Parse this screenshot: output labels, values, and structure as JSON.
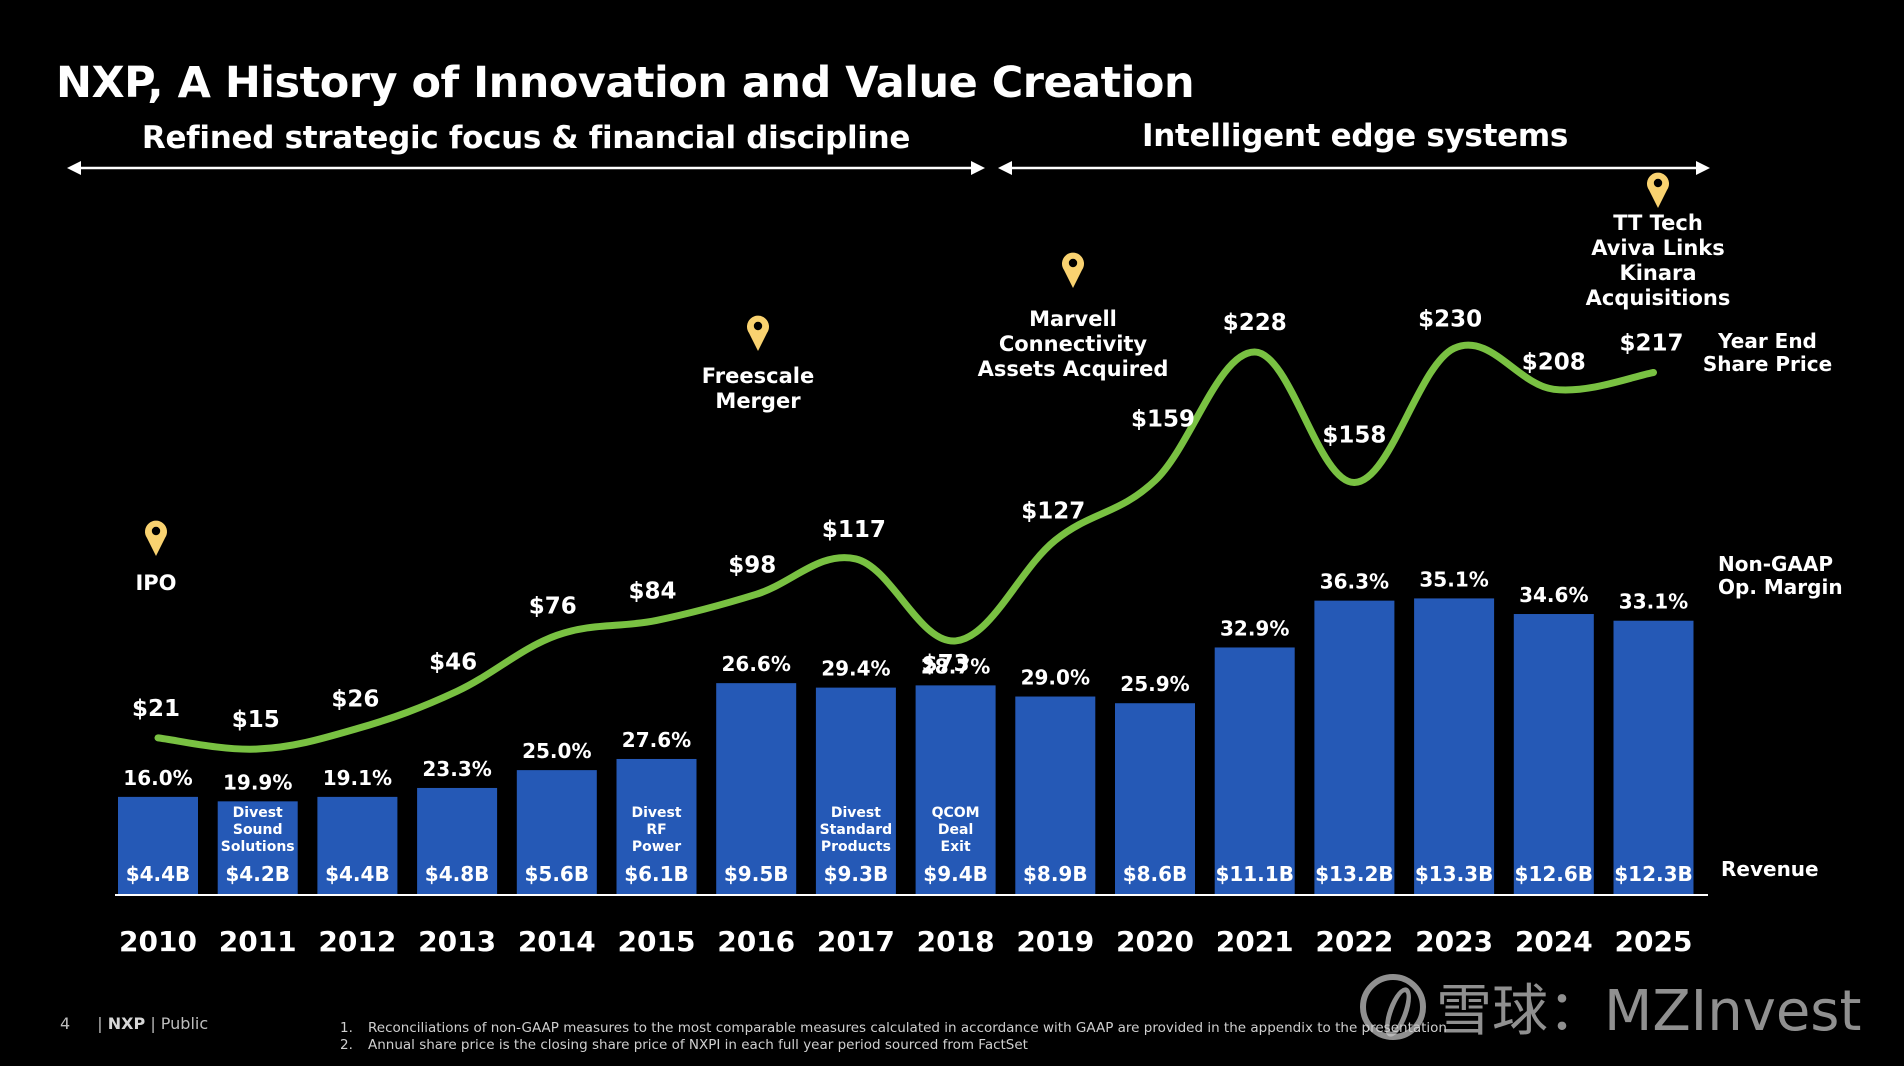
{
  "header": {
    "title": "NXP, A History of Innovation and Value Creation",
    "era_left": "Refined strategic focus & financial discipline",
    "era_right": "Intelligent edge systems"
  },
  "side_labels": {
    "share_price": "Year End\nShare Price",
    "margin": "Non-GAAP\nOp. Margin",
    "revenue": "Revenue"
  },
  "colors": {
    "bar": "#2559b6",
    "line": "#79c142",
    "pin": "#f9d270",
    "background": "#000000",
    "text": "#ffffff"
  },
  "footer": {
    "page_number": "4",
    "brand": "NXP",
    "classification": "Public",
    "notes": [
      {
        "num": "1.",
        "text": "Reconciliations of non-GAAP measures to the most comparable measures calculated in accordance with GAAP are provided in the appendix to the presentation"
      },
      {
        "num": "2.",
        "text": "Annual share price is the closing share price of NXPI in each full year period sourced from FactSet"
      }
    ]
  },
  "watermark": {
    "text": "雪球：MZInvest"
  },
  "chart_data": {
    "type": "bar",
    "title": "NXP, A History of Innovation and Value Creation",
    "xlabel": "",
    "ylabel": "",
    "categories": [
      "2010",
      "2011",
      "2012",
      "2013",
      "2014",
      "2015",
      "2016",
      "2017",
      "2018",
      "2019",
      "2020",
      "2021",
      "2022",
      "2023",
      "2024",
      "2025"
    ],
    "series": [
      {
        "name": "Revenue",
        "type": "bar",
        "unit": "$B",
        "values": [
          4.4,
          4.2,
          4.4,
          4.8,
          5.6,
          6.1,
          9.5,
          9.3,
          9.4,
          8.9,
          8.6,
          11.1,
          13.2,
          13.3,
          12.6,
          12.3
        ],
        "labels": [
          "$4.4B",
          "$4.2B",
          "$4.4B",
          "$4.8B",
          "$5.6B",
          "$6.1B",
          "$9.5B",
          "$9.3B",
          "$9.4B",
          "$8.9B",
          "$8.6B",
          "$11.1B",
          "$13.2B",
          "$13.3B",
          "$12.6B",
          "$12.3B"
        ]
      },
      {
        "name": "Non-GAAP Op. Margin",
        "type": "label",
        "unit": "%",
        "values": [
          16.0,
          19.9,
          19.1,
          23.3,
          25.0,
          27.6,
          26.6,
          29.4,
          28.7,
          29.0,
          25.9,
          32.9,
          36.3,
          35.1,
          34.6,
          33.1
        ],
        "labels": [
          "16.0%",
          "19.9%",
          "19.1%",
          "23.3%",
          "25.0%",
          "27.6%",
          "26.6%",
          "29.4%",
          "28.7%",
          "29.0%",
          "25.9%",
          "32.9%",
          "36.3%",
          "35.1%",
          "34.6%",
          "33.1%"
        ]
      },
      {
        "name": "Year End Share Price",
        "type": "line",
        "unit": "$",
        "values": [
          21,
          15,
          26,
          46,
          76,
          84,
          98,
          117,
          73,
          127,
          159,
          228,
          158,
          230,
          208,
          217
        ],
        "labels": [
          "$21",
          "$15",
          "$26",
          "$46",
          "$76",
          "$84",
          "$98",
          "$117",
          "$73",
          "$127",
          "$159",
          "$228",
          "$158",
          "$230",
          "$208",
          "$217"
        ]
      }
    ],
    "bar_notes": [
      {
        "year": "2011",
        "text": "Divest\nSound\nSolutions"
      },
      {
        "year": "2015",
        "text": "Divest\nRF\nPower"
      },
      {
        "year": "2017",
        "text": "Divest\nStandard\nProducts"
      },
      {
        "year": "2018",
        "text": "QCOM\nDeal\nExit"
      }
    ],
    "milestones": [
      {
        "year": "2010",
        "text": "IPO"
      },
      {
        "year": "2016",
        "text": "Freescale\nMerger"
      },
      {
        "year": "2019",
        "text": "Marvell\nConnectivity\nAssets Acquired"
      },
      {
        "year": "2025",
        "text": "TT Tech\nAviva Links\nKinara\nAcquisitions"
      }
    ],
    "eras": [
      {
        "label": "Refined strategic focus & financial discipline",
        "from": "2010",
        "to": "2018"
      },
      {
        "label": "Intelligent edge systems",
        "from": "2019",
        "to": "2025"
      }
    ],
    "grid": false,
    "legend": "right-side labels"
  }
}
